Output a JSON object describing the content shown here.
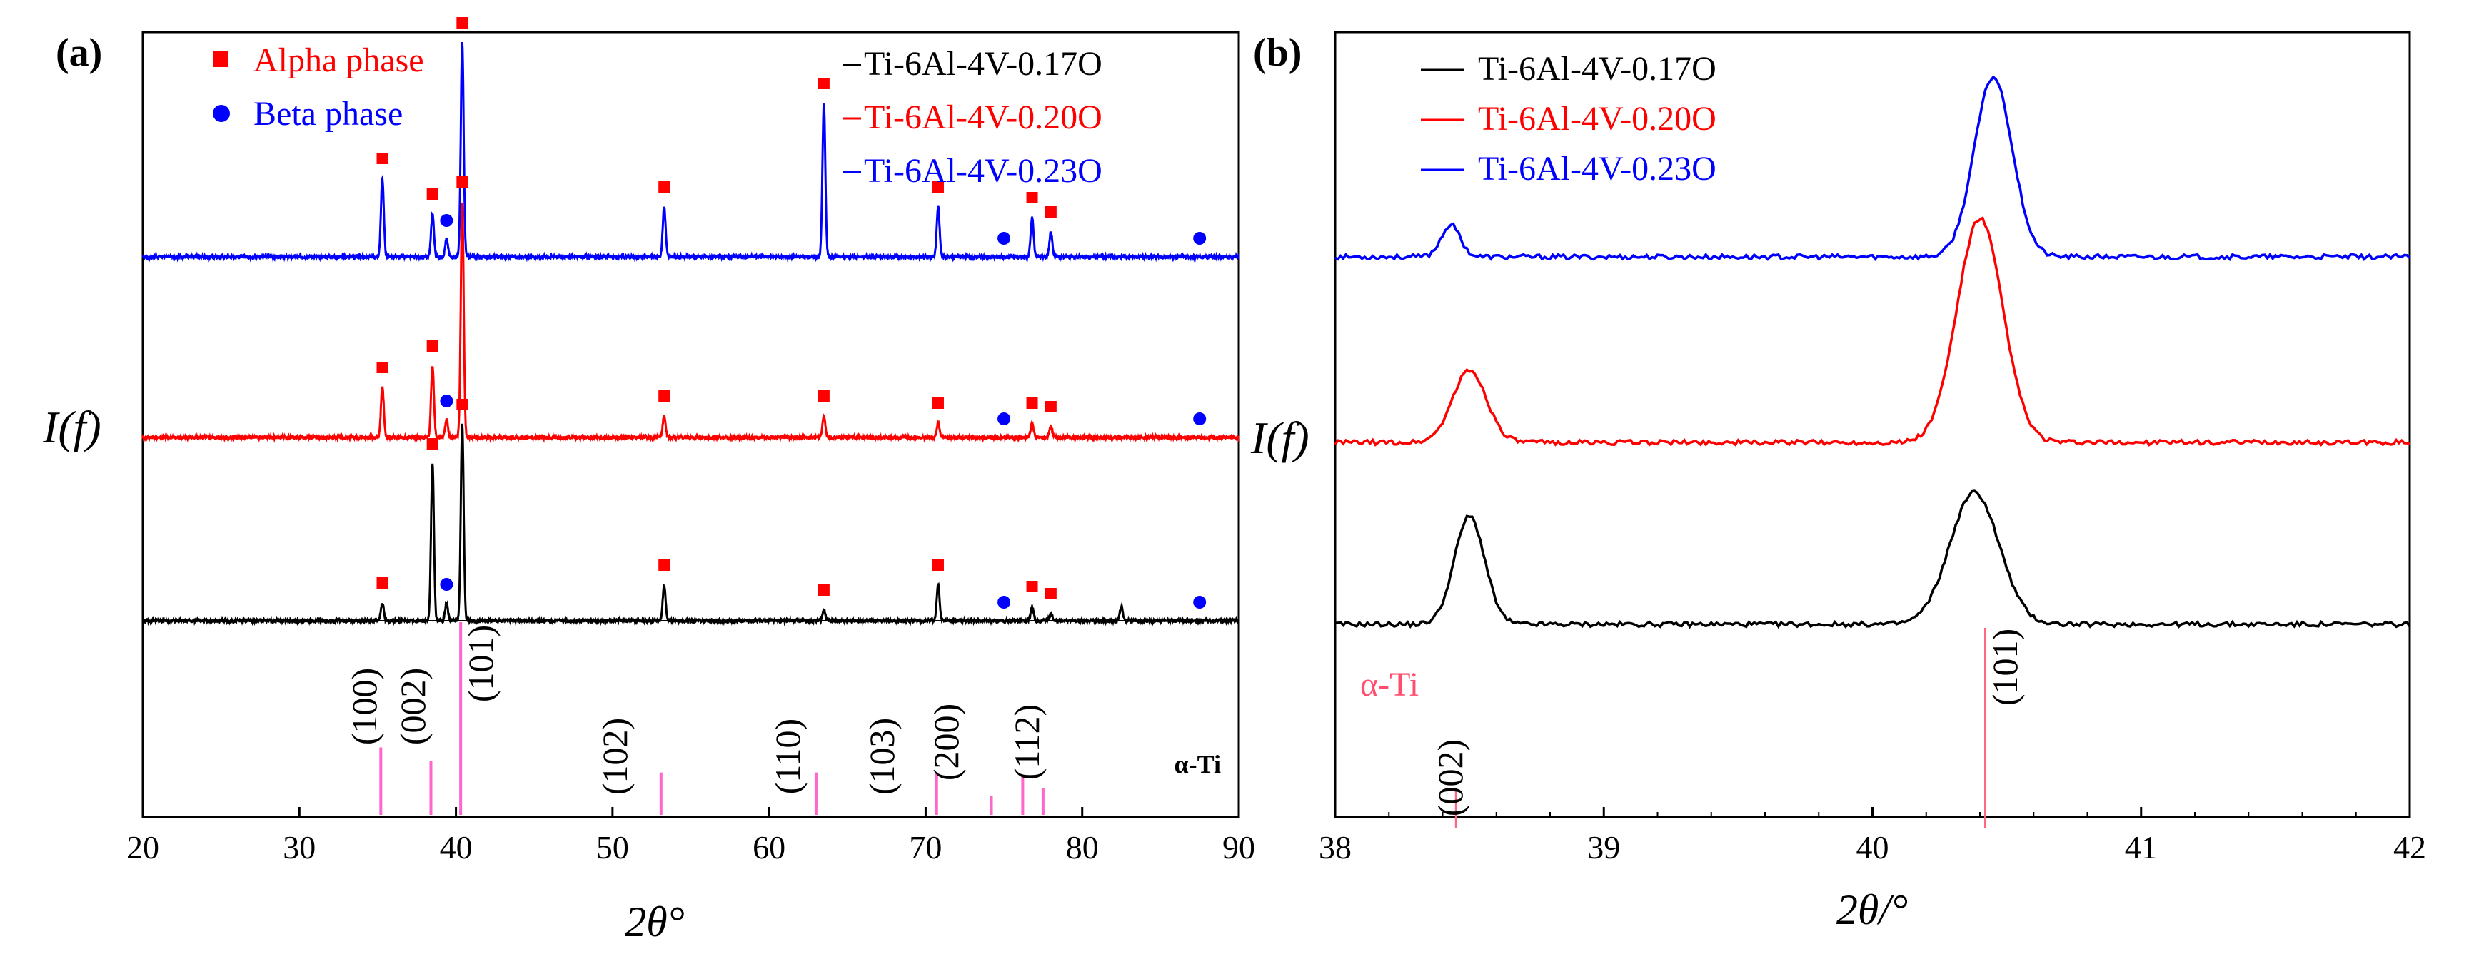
{
  "chart_data": [
    {
      "panel": "(a)",
      "type": "line",
      "xlabel": "2θ°",
      "ylabel": "I(f)",
      "xlim": [
        20,
        90
      ],
      "xticks": [
        "20",
        "30",
        "40",
        "50",
        "60",
        "70",
        "80",
        "90"
      ],
      "legend": {
        "phases": [
          {
            "name": "Alpha phase",
            "symbol": "square",
            "color": "#ff0000"
          },
          {
            "name": "Beta phase",
            "symbol": "circle",
            "color": "#0000ff"
          }
        ],
        "series": [
          {
            "name": "Ti-6Al-4V-0.17O",
            "color": "#000000"
          },
          {
            "name": "Ti-6Al-4V-0.20O",
            "color": "#ff0000"
          },
          {
            "name": "Ti-6Al-4V-0.23O",
            "color": "#0000ff"
          }
        ]
      },
      "series": [
        {
          "name": "Ti-6Al-4V-0.23O",
          "color": "#0000ff",
          "peaks": [
            [
              35.3,
              0.22
            ],
            [
              38.5,
              0.12
            ],
            [
              39.4,
              0.05
            ],
            [
              40.4,
              0.6
            ],
            [
              53.3,
              0.14
            ],
            [
              63.5,
              0.43
            ],
            [
              70.8,
              0.14
            ],
            [
              76.8,
              0.11
            ],
            [
              78.0,
              0.07
            ]
          ]
        },
        {
          "name": "Ti-6Al-4V-0.20O",
          "color": "#ff0000",
          "peaks": [
            [
              35.3,
              0.14
            ],
            [
              38.5,
              0.2
            ],
            [
              39.4,
              0.05
            ],
            [
              40.4,
              0.66
            ],
            [
              53.3,
              0.06
            ],
            [
              63.5,
              0.06
            ],
            [
              70.8,
              0.04
            ],
            [
              76.8,
              0.04
            ],
            [
              78.0,
              0.03
            ]
          ]
        },
        {
          "name": "Ti-6Al-4V-0.17O",
          "color": "#000000",
          "peaks": [
            [
              35.3,
              0.05
            ],
            [
              38.5,
              0.44
            ],
            [
              39.4,
              0.05
            ],
            [
              40.4,
              0.55
            ],
            [
              53.3,
              0.1
            ],
            [
              63.5,
              0.03
            ],
            [
              70.8,
              0.1
            ],
            [
              76.8,
              0.04
            ],
            [
              78.0,
              0.02
            ],
            [
              82.5,
              0.04
            ]
          ]
        }
      ],
      "alpha_markers": [
        35.3,
        38.5,
        40.4,
        53.3,
        63.5,
        70.8,
        76.8,
        78.0
      ],
      "beta_markers": [
        39.4,
        75.0,
        87.5
      ],
      "reference": {
        "label": "α-Ti",
        "lines": [
          {
            "hkl": "(100)",
            "x": 35.2,
            "height": 0.35
          },
          {
            "hkl": "(002)",
            "x": 38.4,
            "height": 0.28
          },
          {
            "hkl": "(101)",
            "x": 40.3,
            "height": 1.0
          },
          {
            "hkl": "(102)",
            "x": 53.1,
            "height": 0.22
          },
          {
            "hkl": "(110)",
            "x": 63.0,
            "height": 0.22
          },
          {
            "hkl": "(103)",
            "x": 70.7,
            "height": 0.22
          },
          {
            "hkl": "(200)",
            "x": 74.2,
            "height": 0.1
          },
          {
            "hkl": "(112)",
            "x": 76.2,
            "height": 0.2
          },
          {
            "hkl": "",
            "x": 77.5,
            "height": 0.14
          }
        ]
      }
    },
    {
      "panel": "(b)",
      "type": "line",
      "xlabel": "2θ/°",
      "ylabel": "I(f)",
      "xlim": [
        38,
        42
      ],
      "xticks": [
        "38",
        "39",
        "40",
        "41",
        "42"
      ],
      "legend": {
        "series": [
          {
            "name": "Ti-6Al-4V-0.17O",
            "color": "#000000"
          },
          {
            "name": "Ti-6Al-4V-0.20O",
            "color": "#ff0000"
          },
          {
            "name": "Ti-6Al-4V-0.23O",
            "color": "#0000ff"
          }
        ]
      },
      "series": [
        {
          "name": "Ti-6Al-4V-0.23O",
          "color": "#0000ff",
          "peaks": [
            [
              38.43,
              0.08,
              0.05
            ],
            [
              40.45,
              0.45,
              0.1
            ]
          ]
        },
        {
          "name": "Ti-6Al-4V-0.20O",
          "color": "#ff0000",
          "peaks": [
            [
              38.5,
              0.18,
              0.09
            ],
            [
              40.4,
              0.56,
              0.12
            ]
          ]
        },
        {
          "name": "Ti-6Al-4V-0.17O",
          "color": "#000000",
          "peaks": [
            [
              38.5,
              0.27,
              0.08
            ],
            [
              40.38,
              0.33,
              0.13
            ]
          ]
        }
      ],
      "reference": {
        "label": "α-Ti",
        "lines": [
          {
            "hkl": "(002)",
            "x": 38.45,
            "height": 0.2
          },
          {
            "hkl": "(101)",
            "x": 40.42,
            "height": 1.0
          }
        ]
      }
    }
  ]
}
